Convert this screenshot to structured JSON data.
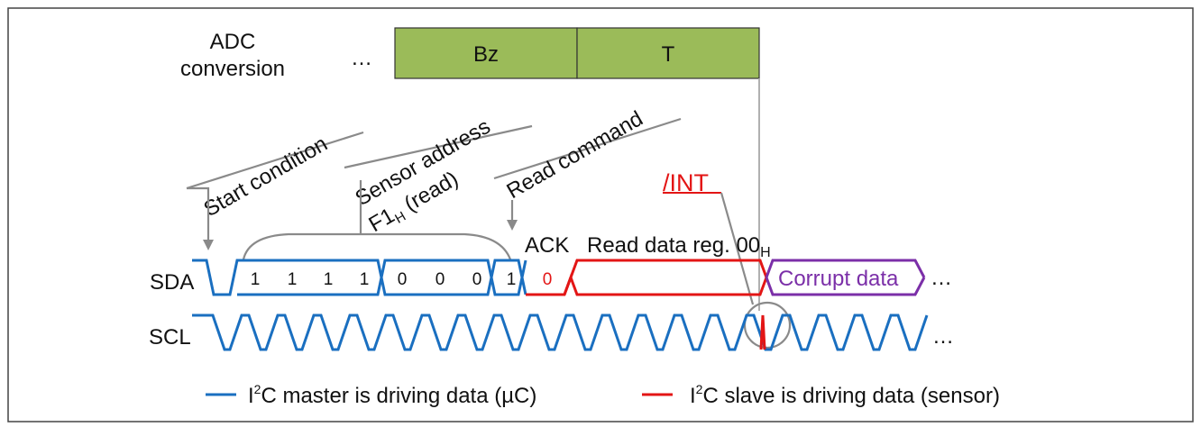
{
  "adc": {
    "label_line1": "ADC",
    "label_line2": "conversion",
    "ellipsis": "…",
    "seg1": "Bz",
    "seg2": "T",
    "fill_color": "#9bbb59"
  },
  "annotations": {
    "start_condition": "Start condition",
    "sensor_address": "Sensor address",
    "f1_main": "F1",
    "f1_sub": "H",
    "f1_read": " (read)",
    "read_command": "Read command",
    "int": "/INT",
    "ack": "ACK",
    "read_data_reg": "Read data reg. 00",
    "read_data_sub": "H"
  },
  "signals": {
    "sda": "SDA",
    "scl": "SCL",
    "sda_bits": [
      "1",
      "1",
      "1",
      "1",
      "0",
      "0",
      "0",
      "1"
    ],
    "ack_bit": "0",
    "corrupt": "Corrupt data",
    "ellipsis": "…"
  },
  "legend": {
    "master_pre": "I",
    "master_sup": "2",
    "master_post": "C master is driving data (µC)",
    "slave_pre": "I",
    "slave_sup": "2",
    "slave_post": "C slave is driving data (sensor)",
    "master_color": "#1a6fc0",
    "slave_color": "#e31515"
  }
}
